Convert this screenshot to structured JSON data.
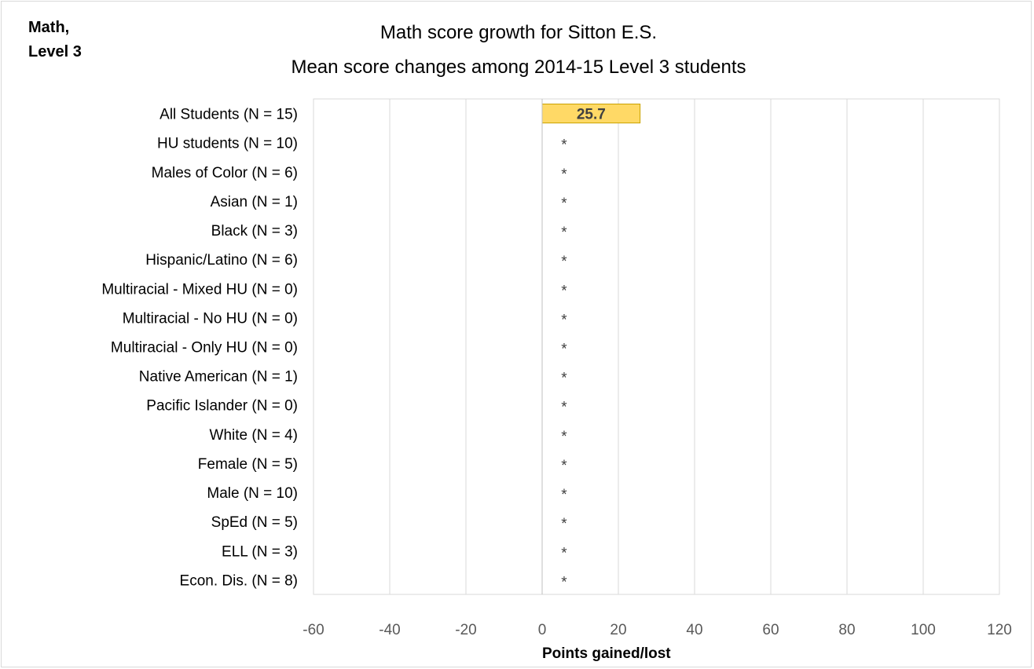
{
  "corner_label": "Math,\nLevel 3",
  "chart_data": {
    "type": "bar",
    "orientation": "horizontal",
    "title": "Math score growth for Sitton E.S.",
    "subtitle": "Mean score changes among 2014-15 Level 3 students",
    "xlabel": "Points gained/lost",
    "ylabel": "",
    "xlim": [
      -60,
      120
    ],
    "xticks": [
      -60,
      -40,
      -20,
      0,
      20,
      40,
      60,
      80,
      100,
      120
    ],
    "grid": true,
    "bar_color": "#ffd966",
    "bar_edge_color": "#c9a100",
    "suppressed_marker": "*",
    "categories": [
      "All Students (N = 15)",
      "HU students (N = 10)",
      "Males of Color (N = 6)",
      "Asian (N = 1)",
      "Black (N = 3)",
      "Hispanic/Latino (N = 6)",
      "Multiracial - Mixed HU (N = 0)",
      "Multiracial - No HU (N = 0)",
      "Multiracial - Only HU (N = 0)",
      "Native American (N = 1)",
      "Pacific Islander (N = 0)",
      "White (N = 4)",
      "Female (N = 5)",
      "Male (N = 10)",
      "SpEd (N = 5)",
      "ELL (N = 3)",
      "Econ. Dis. (N = 8)"
    ],
    "values": [
      25.7,
      null,
      null,
      null,
      null,
      null,
      null,
      null,
      null,
      null,
      null,
      null,
      null,
      null,
      null,
      null,
      null
    ],
    "data_labels": [
      "25.7",
      "*",
      "*",
      "*",
      "*",
      "*",
      "*",
      "*",
      "*",
      "*",
      "*",
      "*",
      "*",
      "*",
      "*",
      "*",
      "*"
    ]
  }
}
